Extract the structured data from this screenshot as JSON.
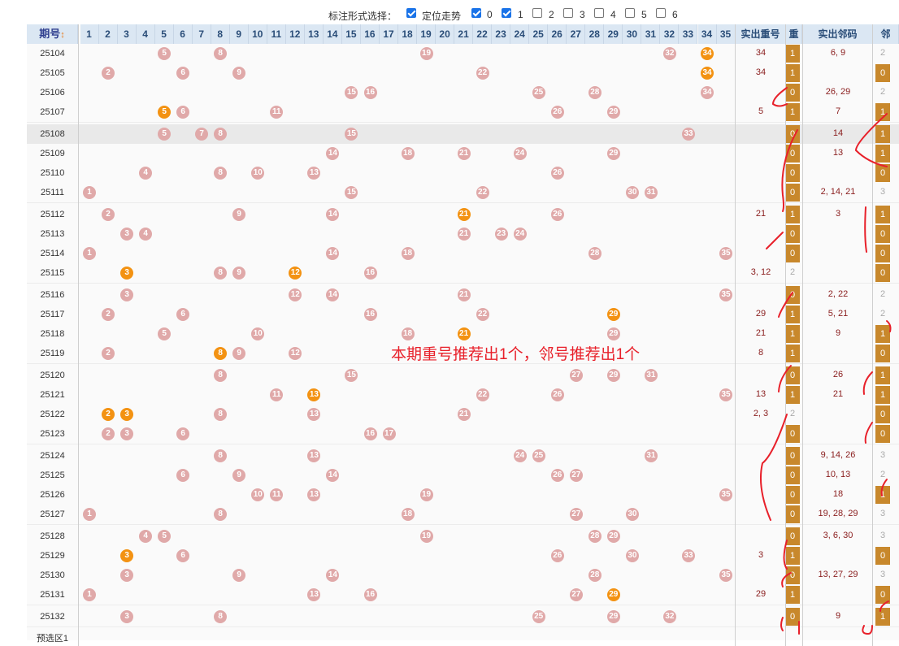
{
  "topbar": {
    "label": "标注形式选择：",
    "options": [
      {
        "label": "定位走势",
        "checked": true
      },
      {
        "label": "0",
        "checked": true
      },
      {
        "label": "1",
        "checked": true
      },
      {
        "label": "2",
        "checked": false
      },
      {
        "label": "3",
        "checked": false
      },
      {
        "label": "4",
        "checked": false
      },
      {
        "label": "5",
        "checked": false
      },
      {
        "label": "6",
        "checked": false
      }
    ]
  },
  "header": {
    "period": "期号",
    "sort_icon": "↕",
    "numbers": [
      "1",
      "2",
      "3",
      "4",
      "5",
      "6",
      "7",
      "8",
      "9",
      "10",
      "11",
      "12",
      "13",
      "14",
      "15",
      "16",
      "17",
      "18",
      "19",
      "20",
      "21",
      "22",
      "23",
      "24",
      "25",
      "26",
      "27",
      "28",
      "29",
      "30",
      "31",
      "32",
      "33",
      "34",
      "35"
    ],
    "repeat_actual": "实出重号",
    "repeat": "重",
    "neighbor_actual": "实出邻码",
    "neighbor": "邻"
  },
  "colors": {
    "pink_ball": "#e0a9a9",
    "orange_ball": "#f39212",
    "repeat_box": "#c8882c",
    "header_bg": "#dbe7f3",
    "annotation": "#e8202a"
  },
  "rows": [
    {
      "period": "25104",
      "pink": [
        5,
        8,
        19,
        32
      ],
      "orange": [
        34
      ],
      "rep_actual": "34",
      "rep": "1",
      "nb_actual": "6, 9",
      "nb": "2",
      "nb_box": false
    },
    {
      "period": "25105",
      "pink": [
        2,
        6,
        9,
        22
      ],
      "orange": [
        34
      ],
      "rep_actual": "34",
      "rep": "1",
      "nb_actual": "",
      "nb": "0",
      "nb_box": true
    },
    {
      "period": "25106",
      "pink": [
        15,
        16,
        25,
        28,
        34
      ],
      "orange": [],
      "rep_actual": "",
      "rep": "0",
      "nb_actual": "26, 29",
      "nb": "2",
      "nb_box": false
    },
    {
      "period": "25107",
      "pink": [
        6,
        11,
        26,
        29
      ],
      "orange": [
        5
      ],
      "rep_actual": "5",
      "rep": "1",
      "nb_actual": "7",
      "nb": "1",
      "nb_box": true
    },
    {
      "period": "25108",
      "pink": [
        5,
        7,
        8,
        15,
        33
      ],
      "orange": [],
      "rep_actual": "",
      "rep": "0",
      "nb_actual": "14",
      "nb": "1",
      "nb_box": true,
      "grey": true
    },
    {
      "period": "25109",
      "pink": [
        14,
        18,
        21,
        24,
        29
      ],
      "orange": [],
      "rep_actual": "",
      "rep": "0",
      "nb_actual": "13",
      "nb": "1",
      "nb_box": true
    },
    {
      "period": "25110",
      "pink": [
        4,
        8,
        10,
        13,
        26
      ],
      "orange": [],
      "rep_actual": "",
      "rep": "0",
      "nb_actual": "",
      "nb": "0",
      "nb_box": true
    },
    {
      "period": "25111",
      "pink": [
        1,
        15,
        22,
        30,
        31
      ],
      "orange": [],
      "rep_actual": "",
      "rep": "0",
      "nb_actual": "2, 14, 21",
      "nb": "3",
      "nb_box": false
    },
    {
      "period": "25112",
      "pink": [
        2,
        9,
        14,
        26
      ],
      "orange": [
        21
      ],
      "rep_actual": "21",
      "rep": "1",
      "nb_actual": "3",
      "nb": "1",
      "nb_box": true
    },
    {
      "period": "25113",
      "pink": [
        3,
        4,
        21,
        23,
        24
      ],
      "orange": [],
      "rep_actual": "",
      "rep": "0",
      "nb_actual": "",
      "nb": "0",
      "nb_box": true
    },
    {
      "period": "25114",
      "pink": [
        1,
        14,
        18,
        28,
        35
      ],
      "orange": [],
      "rep_actual": "",
      "rep": "0",
      "nb_actual": "",
      "nb": "0",
      "nb_box": true
    },
    {
      "period": "25115",
      "pink": [
        8,
        9,
        16
      ],
      "orange": [
        3,
        12
      ],
      "rep_actual": "3, 12",
      "rep": "2",
      "rep_plain": true,
      "nb_actual": "",
      "nb": "0",
      "nb_box": true
    },
    {
      "period": "25116",
      "pink": [
        3,
        12,
        14,
        21,
        35
      ],
      "orange": [],
      "rep_actual": "",
      "rep": "0",
      "nb_actual": "2, 22",
      "nb": "2",
      "nb_box": false
    },
    {
      "period": "25117",
      "pink": [
        2,
        6,
        16,
        22
      ],
      "orange": [
        29
      ],
      "rep_actual": "29",
      "rep": "1",
      "nb_actual": "5, 21",
      "nb": "2",
      "nb_box": false
    },
    {
      "period": "25118",
      "pink": [
        5,
        10,
        18,
        29
      ],
      "orange": [
        21
      ],
      "rep_actual": "21",
      "rep": "1",
      "nb_actual": "9",
      "nb": "1",
      "nb_box": true
    },
    {
      "period": "25119",
      "pink": [
        2,
        9,
        12
      ],
      "orange": [
        8
      ],
      "rep_actual": "8",
      "rep": "1",
      "nb_actual": "",
      "nb": "0",
      "nb_box": true
    },
    {
      "period": "25120",
      "pink": [
        8,
        15,
        27,
        29,
        31
      ],
      "orange": [],
      "rep_actual": "",
      "rep": "0",
      "nb_actual": "26",
      "nb": "1",
      "nb_box": true
    },
    {
      "period": "25121",
      "pink": [
        11,
        22,
        26,
        35
      ],
      "orange": [
        13
      ],
      "rep_actual": "13",
      "rep": "1",
      "nb_actual": "21",
      "nb": "1",
      "nb_box": true
    },
    {
      "period": "25122",
      "pink": [
        8,
        13,
        21
      ],
      "orange": [
        2,
        3
      ],
      "rep_actual": "2, 3",
      "rep": "2",
      "rep_plain": true,
      "nb_actual": "",
      "nb": "0",
      "nb_box": true
    },
    {
      "period": "25123",
      "pink": [
        2,
        3,
        6,
        16,
        17
      ],
      "orange": [],
      "rep_actual": "",
      "rep": "0",
      "nb_actual": "",
      "nb": "0",
      "nb_box": true
    },
    {
      "period": "25124",
      "pink": [
        8,
        13,
        24,
        25,
        31
      ],
      "orange": [],
      "rep_actual": "",
      "rep": "0",
      "nb_actual": "9, 14, 26",
      "nb": "3",
      "nb_box": false
    },
    {
      "period": "25125",
      "pink": [
        6,
        9,
        14,
        26,
        27
      ],
      "orange": [],
      "rep_actual": "",
      "rep": "0",
      "nb_actual": "10, 13",
      "nb": "2",
      "nb_box": false
    },
    {
      "period": "25126",
      "pink": [
        10,
        11,
        13,
        19,
        35
      ],
      "orange": [],
      "rep_actual": "",
      "rep": "0",
      "nb_actual": "18",
      "nb": "1",
      "nb_box": true
    },
    {
      "period": "25127",
      "pink": [
        1,
        8,
        18,
        27,
        30
      ],
      "orange": [],
      "rep_actual": "",
      "rep": "0",
      "nb_actual": "19, 28, 29",
      "nb": "3",
      "nb_box": false
    },
    {
      "period": "25128",
      "pink": [
        4,
        5,
        19,
        28,
        29
      ],
      "orange": [],
      "rep_actual": "",
      "rep": "0",
      "nb_actual": "3, 6, 30",
      "nb": "3",
      "nb_box": false
    },
    {
      "period": "25129",
      "pink": [
        6,
        26,
        30,
        33
      ],
      "orange": [
        3
      ],
      "rep_actual": "3",
      "rep": "1",
      "nb_actual": "",
      "nb": "0",
      "nb_box": true
    },
    {
      "period": "25130",
      "pink": [
        3,
        9,
        14,
        28,
        35
      ],
      "orange": [],
      "rep_actual": "",
      "rep": "0",
      "nb_actual": "13, 27, 29",
      "nb": "3",
      "nb_box": false
    },
    {
      "period": "25131",
      "pink": [
        1,
        13,
        16,
        27
      ],
      "orange": [
        29
      ],
      "rep_actual": "29",
      "rep": "1",
      "nb_actual": "",
      "nb": "0",
      "nb_box": true
    },
    {
      "period": "25132",
      "pink": [
        3,
        8,
        25,
        29,
        32
      ],
      "orange": [],
      "rep_actual": "",
      "rep": "0",
      "nb_actual": "9",
      "nb": "1",
      "nb_box": true
    }
  ],
  "preselect": "预选区1",
  "annotation": "本期重号推荐出1个，邻号推荐出1个",
  "edge_digits": [
    "1",
    "1",
    "8"
  ]
}
